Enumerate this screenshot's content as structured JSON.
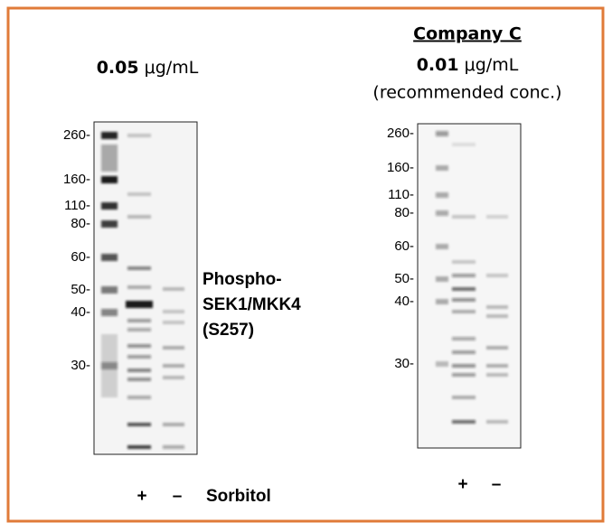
{
  "left_panel": {
    "concentration": {
      "value": "0.05",
      "unit": "μg/mL"
    },
    "markers": [
      "260-",
      "160-",
      "110-",
      "80-",
      "60-",
      "50-",
      "40-",
      "30-"
    ],
    "target_label": [
      "Phospho-",
      "SEK1/MKK4",
      "(S257)"
    ],
    "lanes": [
      "+",
      "–"
    ],
    "treatment": "Sorbitol"
  },
  "right_panel": {
    "company": "Company C",
    "concentration": {
      "value": "0.01",
      "unit": "μg/mL"
    },
    "note": "(recommended conc.)",
    "markers": [
      "260-",
      "160-",
      "110-",
      "80-",
      "60-",
      "50-",
      "40-",
      "30-"
    ],
    "lanes": [
      "+",
      "–"
    ]
  }
}
